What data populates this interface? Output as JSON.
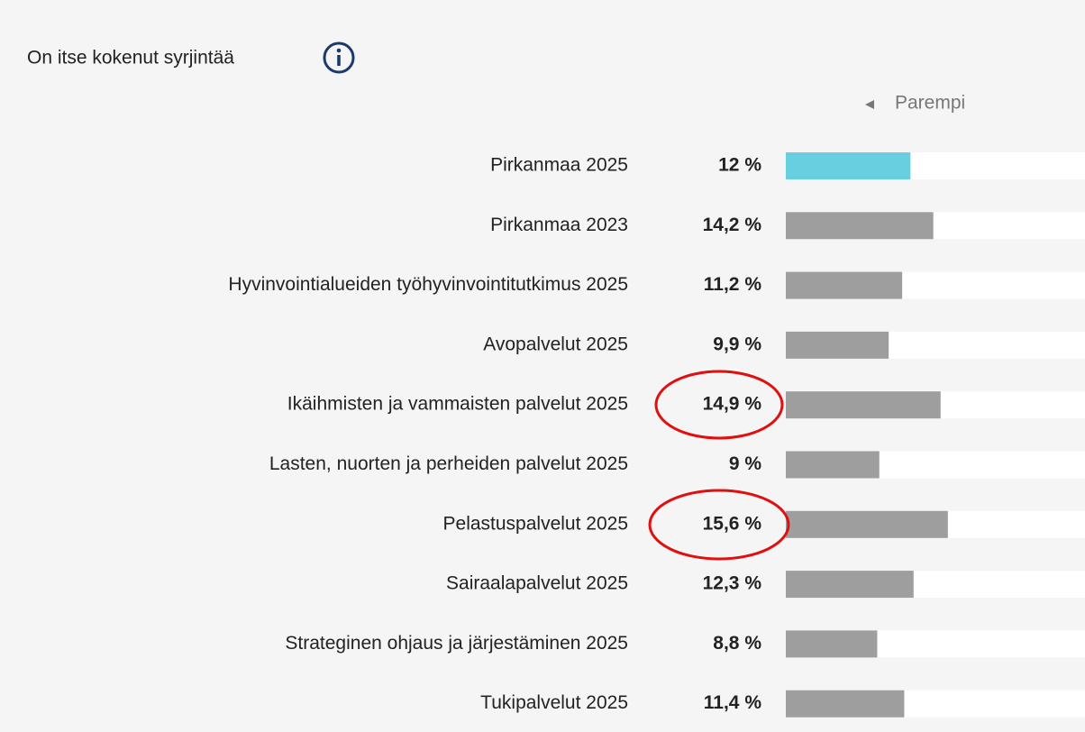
{
  "chart_data": {
    "type": "bar",
    "orientation": "horizontal",
    "title": "On itse kokenut syrjintää",
    "annotation": "Parempi",
    "categories": [
      "Pirkanmaa 2025",
      "Pirkanmaa 2023",
      "Hyvinvointialueiden työhyvinvointitutkimus 2025",
      "Avopalvelut 2025",
      "Ikäihmisten ja vammaisten palvelut 2025",
      "Lasten, nuorten ja perheiden palvelut 2025",
      "Pelastuspalvelut 2025",
      "Sairaalapalvelut 2025",
      "Strateginen ohjaus ja järjestäminen 2025",
      "Tukipalvelut 2025"
    ],
    "values": [
      12,
      14.2,
      11.2,
      9.9,
      14.9,
      9,
      15.6,
      12.3,
      8.8,
      11.4
    ],
    "value_labels": [
      "12 %",
      "14,2 %",
      "11,2 %",
      "9,9 %",
      "14,9 %",
      "9 %",
      "15,6 %",
      "12,3 %",
      "8,8 %",
      "11,4 %"
    ],
    "colors": [
      "#67cfdf",
      "#9e9e9e",
      "#9e9e9e",
      "#9e9e9e",
      "#9e9e9e",
      "#9e9e9e",
      "#9e9e9e",
      "#9e9e9e",
      "#9e9e9e",
      "#9e9e9e"
    ],
    "xlim": [
      0,
      28.8
    ]
  }
}
